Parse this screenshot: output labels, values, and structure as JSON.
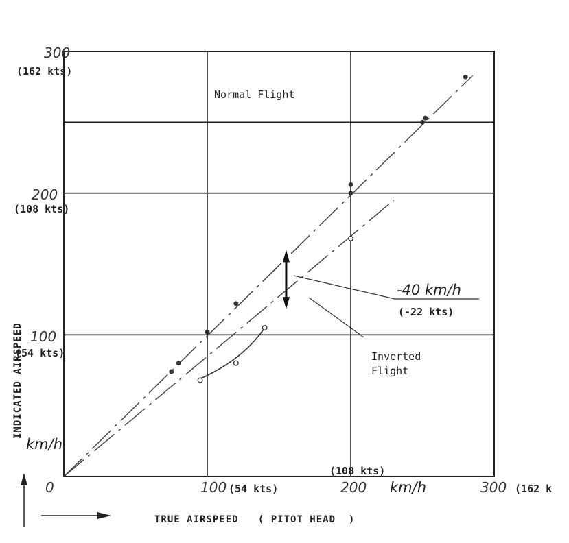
{
  "chart_data": {
    "type": "scatter",
    "xlim": [
      0,
      300
    ],
    "ylim": [
      0,
      300
    ],
    "grid": true,
    "x_ticks": [
      {
        "value": 0,
        "label": "0"
      },
      {
        "value": 100,
        "label": "100",
        "sub": "(54 kts)"
      },
      {
        "value": 200,
        "label": "200"
      },
      {
        "value": 300,
        "label": "300",
        "sub": "(162 k"
      }
    ],
    "x_unit": "km/h",
    "x_annotation_108": "(108 kts)",
    "y_ticks": [
      {
        "value": 100,
        "label": "100",
        "sub": "(54 kts)"
      },
      {
        "value": 200,
        "label": "200",
        "sub": "(108 kts)"
      },
      {
        "value": 300,
        "label": "300",
        "sub": "(162 kts)"
      }
    ],
    "y_unit": "km/h",
    "xlabel": "TRUE AIRSPEED   ( PITOT HEAD  )",
    "ylabel": "INDICATED  AIRSPEED",
    "series": [
      {
        "name": "Normal Flight",
        "line": [
          [
            0,
            0
          ],
          [
            285,
            283
          ]
        ],
        "points": [
          [
            75,
            74
          ],
          [
            80,
            80
          ],
          [
            100,
            102
          ],
          [
            120,
            122
          ],
          [
            200,
            200
          ],
          [
            200,
            206
          ],
          [
            250,
            250
          ],
          [
            252,
            253
          ],
          [
            280,
            282
          ]
        ]
      },
      {
        "name": "Inverted Flight",
        "line": [
          [
            0,
            0
          ],
          [
            230,
            195
          ]
        ],
        "curve": [
          [
            95,
            69
          ],
          [
            115,
            78
          ],
          [
            130,
            90
          ],
          [
            140,
            105
          ]
        ],
        "points": [
          [
            95,
            68
          ],
          [
            120,
            80
          ],
          [
            140,
            105
          ],
          [
            200,
            168
          ]
        ]
      }
    ],
    "annotation": {
      "x": 155,
      "y_top": 160,
      "y_bottom": 118,
      "delta": "-40 km/h",
      "delta_kts": "(-22 kts)"
    }
  }
}
